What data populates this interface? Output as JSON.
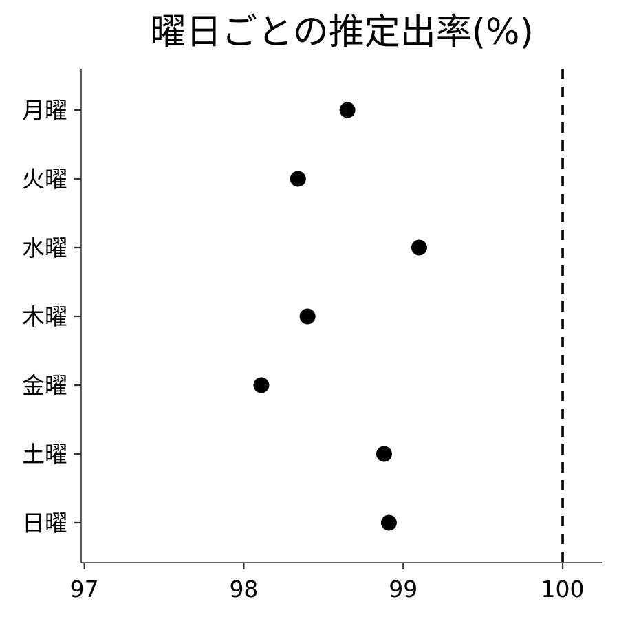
{
  "chart_data": {
    "type": "scatter",
    "title": "曜日ごとの推定出率(%)",
    "xlabel": "",
    "ylabel": "",
    "categories": [
      "月曜",
      "火曜",
      "水曜",
      "木曜",
      "金曜",
      "土曜",
      "日曜"
    ],
    "values": [
      98.65,
      98.34,
      99.1,
      98.4,
      98.11,
      98.88,
      98.91
    ],
    "xlim": [
      96.98,
      100.25
    ],
    "x_ticks": [
      97,
      98,
      99,
      100
    ],
    "reference_line": {
      "x": 100,
      "style": "dashed"
    },
    "grid": false,
    "legend": "none",
    "point_color": "#000000"
  }
}
